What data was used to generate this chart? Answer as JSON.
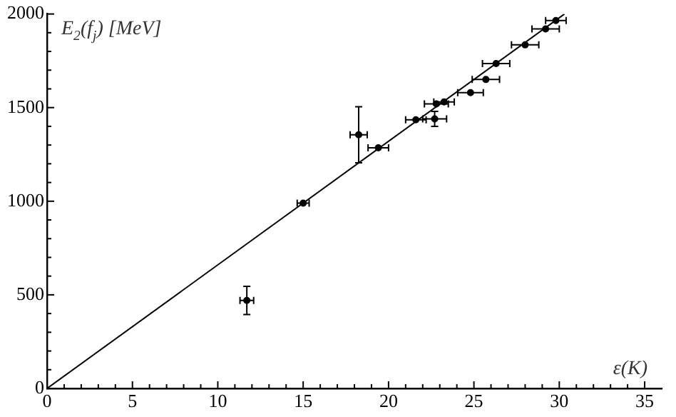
{
  "chart_data": {
    "type": "scatter",
    "xlabel": "ε(K)",
    "ylabel": "E$_{2}$(f$_{j}$) [MeV]",
    "xlim": [
      0,
      36
    ],
    "ylim": [
      0,
      2000
    ],
    "xticks": [
      0,
      {
        "value": 1,
        "label": null
      },
      {
        "value": 2,
        "label": null
      },
      {
        "value": 3,
        "label": null
      },
      {
        "value": 4,
        "label": null
      },
      5,
      {
        "value": 6,
        "label": null
      },
      {
        "value": 7,
        "label": null
      },
      {
        "value": 8,
        "label": null
      },
      {
        "value": 9,
        "label": null
      },
      10,
      {
        "value": 11,
        "label": null
      },
      {
        "value": 12,
        "label": null
      },
      {
        "value": 13,
        "label": null
      },
      {
        "value": 14,
        "label": null
      },
      15,
      {
        "value": 16,
        "label": null
      },
      {
        "value": 17,
        "label": null
      },
      {
        "value": 18,
        "label": null
      },
      {
        "value": 19,
        "label": null
      },
      20,
      {
        "value": 21,
        "label": null
      },
      {
        "value": 22,
        "label": null
      },
      {
        "value": 23,
        "label": null
      },
      {
        "value": 24,
        "label": null
      },
      25,
      {
        "value": 26,
        "label": null
      },
      {
        "value": 27,
        "label": null
      },
      {
        "value": 28,
        "label": null
      },
      {
        "value": 29,
        "label": null
      },
      30,
      {
        "value": 31,
        "label": null
      },
      {
        "value": 32,
        "label": null
      },
      {
        "value": 33,
        "label": null
      },
      {
        "value": 34,
        "label": null
      },
      35
    ],
    "yticks": [
      0,
      {
        "value": 100,
        "label": null
      },
      {
        "value": 200,
        "label": null
      },
      {
        "value": 300,
        "label": null
      },
      {
        "value": 400,
        "label": null
      },
      500,
      {
        "value": 600,
        "label": null
      },
      {
        "value": 700,
        "label": null
      },
      {
        "value": 800,
        "label": null
      },
      {
        "value": 900,
        "label": null
      },
      1000,
      {
        "value": 1100,
        "label": null
      },
      {
        "value": 1200,
        "label": null
      },
      {
        "value": 1300,
        "label": null
      },
      {
        "value": 1400,
        "label": null
      },
      1500,
      {
        "value": 1600,
        "label": null
      },
      {
        "value": 1700,
        "label": null
      },
      {
        "value": 1800,
        "label": null
      },
      {
        "value": 1900,
        "label": null
      },
      2000
    ],
    "grid": false,
    "legend": false,
    "series": [
      {
        "color": "#000000",
        "marker": "circle",
        "x": [
          11.7,
          15.0,
          18.25,
          19.4,
          21.6,
          22.7,
          22.8,
          23.25,
          24.8,
          25.7,
          26.3,
          28.0,
          29.2,
          29.8
        ],
        "values": [
          470,
          990,
          1355,
          1285,
          1435,
          1440,
          1520,
          1530,
          1580,
          1650,
          1735,
          1835,
          1920,
          1965
        ],
        "errors": [
          75,
          null,
          150,
          null,
          null,
          40,
          null,
          null,
          null,
          null,
          null,
          null,
          null,
          null
        ],
        "xerrors": [
          0.4,
          0.35,
          0.5,
          0.6,
          0.6,
          0.7,
          0.7,
          0.6,
          0.75,
          0.8,
          0.8,
          0.8,
          0.8,
          0.6
        ]
      },
      {
        "type": "line",
        "color": "#000000",
        "marker": "none",
        "line_style": "solid",
        "x": [
          0,
          30.3
        ],
        "values": [
          0,
          2000
        ]
      }
    ]
  }
}
